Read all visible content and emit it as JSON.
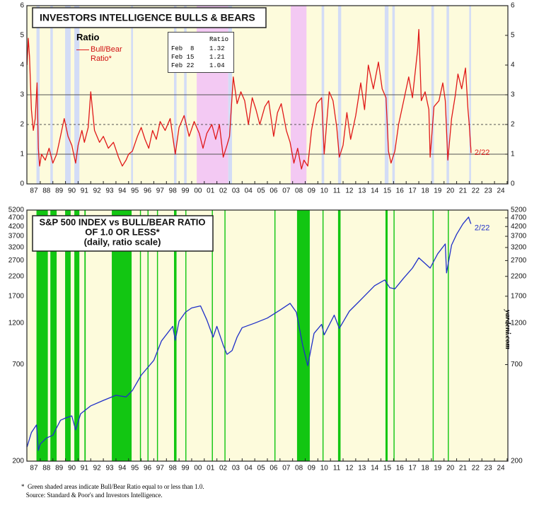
{
  "chart_data": [
    {
      "type": "line",
      "title": "INVESTORS INTELLIGENCE BULLS & BEARS",
      "legend_title": "Ratio",
      "end_label": "2/22",
      "table": {
        "header": "Ratio",
        "rows": [
          [
            "Feb  8",
            1.32
          ],
          [
            "Feb 15",
            1.21
          ],
          [
            "Feb 22",
            1.04
          ]
        ]
      },
      "background": "#fdfbdc",
      "xlim": [
        1986.94,
        2025.06
      ],
      "ylim": [
        0,
        6
      ],
      "yticks": [
        0,
        1,
        2,
        3,
        4,
        5,
        6
      ],
      "reference_lines": [
        {
          "value": 1,
          "dash": false
        },
        {
          "value": 2,
          "dash": true
        },
        {
          "value": 3,
          "dash": false
        }
      ],
      "bands": [
        {
          "color": "#f3c9f3",
          "periods": [
            [
              2000.4,
              2002.9
            ],
            [
              2007.85,
              2009.1
            ]
          ]
        },
        {
          "color": "#d3dcf6",
          "periods": [
            [
              1987.7,
              1987.95
            ],
            [
              1988.8,
              1989.0
            ],
            [
              1989.97,
              1990.41
            ],
            [
              1990.7,
              1991.1
            ],
            [
              1995.2,
              1995.35
            ],
            [
              1998.6,
              1998.8
            ],
            [
              1999.4,
              1999.6
            ],
            [
              2002.9,
              2003.2
            ],
            [
              2010.3,
              2010.5
            ],
            [
              2011.6,
              2011.85
            ],
            [
              2015.3,
              2015.6
            ],
            [
              2015.9,
              2016.1
            ],
            [
              2019.0,
              2019.2
            ],
            [
              2020.2,
              2020.4
            ],
            [
              2022.0,
              2022.14
            ]
          ]
        }
      ],
      "xticks": [
        {
          "value": 1987.5,
          "label": "87"
        },
        {
          "value": 1988.5,
          "label": "88"
        },
        {
          "value": 1989.5,
          "label": "89"
        },
        {
          "value": 1990.5,
          "label": "90"
        },
        {
          "value": 1991.5,
          "label": "91"
        },
        {
          "value": 1992.5,
          "label": "92"
        },
        {
          "value": 1993.5,
          "label": "93"
        },
        {
          "value": 1994.5,
          "label": "94"
        },
        {
          "value": 1995.5,
          "label": "95"
        },
        {
          "value": 1996.5,
          "label": "96"
        },
        {
          "value": 1997.5,
          "label": "97"
        },
        {
          "value": 1998.5,
          "label": "98"
        },
        {
          "value": 1999.5,
          "label": "99"
        },
        {
          "value": 2000.5,
          "label": "00"
        },
        {
          "value": 2001.5,
          "label": "01"
        },
        {
          "value": 2002.5,
          "label": "02"
        },
        {
          "value": 2003.5,
          "label": "03"
        },
        {
          "value": 2004.5,
          "label": "04"
        },
        {
          "value": 2005.5,
          "label": "05"
        },
        {
          "value": 2006.5,
          "label": "06"
        },
        {
          "value": 2007.5,
          "label": "07"
        },
        {
          "value": 2008.5,
          "label": "08"
        },
        {
          "value": 2009.5,
          "label": "09"
        },
        {
          "value": 2010.5,
          "label": "10"
        },
        {
          "value": 2011.5,
          "label": "11"
        },
        {
          "value": 2012.5,
          "label": "12"
        },
        {
          "value": 2013.5,
          "label": "13"
        },
        {
          "value": 2014.5,
          "label": "14"
        },
        {
          "value": 2015.5,
          "label": "15"
        },
        {
          "value": 2016.5,
          "label": "16"
        },
        {
          "value": 2017.5,
          "label": "17"
        },
        {
          "value": 2018.5,
          "label": "18"
        },
        {
          "value": 2019.5,
          "label": "19"
        },
        {
          "value": 2020.5,
          "label": "20"
        },
        {
          "value": 2021.5,
          "label": "21"
        },
        {
          "value": 2022.5,
          "label": "22"
        },
        {
          "value": 2023.5,
          "label": "23"
        },
        {
          "value": 2024.5,
          "label": "24"
        }
      ],
      "series": [
        {
          "name": "Bull/Bear Ratio*",
          "color": "#e01818",
          "x": [
            1986.95,
            1987.05,
            1987.15,
            1987.3,
            1987.45,
            1987.6,
            1987.75,
            1987.85,
            1987.95,
            1988.1,
            1988.4,
            1988.7,
            1989.0,
            1989.3,
            1989.6,
            1989.9,
            1990.2,
            1990.5,
            1990.8,
            1991.0,
            1991.3,
            1991.5,
            1991.8,
            1992.0,
            1992.3,
            1992.7,
            1993.0,
            1993.4,
            1993.8,
            1994.2,
            1994.5,
            1994.8,
            1995.0,
            1995.3,
            1995.7,
            1996.0,
            1996.3,
            1996.6,
            1996.9,
            1997.2,
            1997.5,
            1997.9,
            1998.3,
            1998.7,
            1999.0,
            1999.4,
            1999.8,
            2000.2,
            2000.6,
            2000.9,
            2001.2,
            2001.6,
            2001.9,
            2002.2,
            2002.5,
            2002.8,
            2003.0,
            2003.3,
            2003.6,
            2003.9,
            2004.2,
            2004.5,
            2004.8,
            2005.1,
            2005.4,
            2005.8,
            2006.1,
            2006.5,
            2006.8,
            2007.1,
            2007.5,
            2007.8,
            2008.1,
            2008.4,
            2008.7,
            2008.9,
            2009.2,
            2009.5,
            2009.9,
            2010.3,
            2010.5,
            2010.9,
            2011.2,
            2011.5,
            2011.7,
            2012.0,
            2012.3,
            2012.6,
            2013.0,
            2013.4,
            2013.7,
            2014.0,
            2014.4,
            2014.8,
            2015.1,
            2015.4,
            2015.6,
            2015.8,
            2016.1,
            2016.4,
            2016.8,
            2017.2,
            2017.5,
            2017.9,
            2018.0,
            2018.2,
            2018.5,
            2018.8,
            2018.9,
            2019.2,
            2019.6,
            2019.9,
            2020.1,
            2020.3,
            2020.6,
            2020.9,
            2021.1,
            2021.4,
            2021.7,
            2021.9,
            2022.0,
            2022.1,
            2022.12,
            2022.14
          ],
          "values": [
            4.0,
            4.9,
            4.3,
            2.5,
            1.8,
            2.2,
            3.4,
            1.2,
            0.6,
            1.0,
            0.8,
            1.2,
            0.7,
            1.0,
            1.6,
            2.2,
            1.6,
            1.3,
            0.7,
            1.3,
            1.8,
            1.4,
            1.9,
            3.1,
            1.8,
            1.4,
            1.6,
            1.2,
            1.4,
            0.9,
            0.6,
            0.8,
            1.0,
            1.1,
            1.6,
            1.9,
            1.5,
            1.2,
            1.8,
            1.5,
            2.1,
            1.8,
            2.2,
            1.0,
            1.9,
            2.3,
            1.6,
            2.1,
            1.7,
            1.2,
            1.7,
            2.0,
            1.5,
            2.0,
            0.9,
            1.3,
            1.6,
            3.6,
            2.7,
            3.1,
            2.8,
            2.0,
            2.9,
            2.5,
            2.0,
            2.6,
            2.8,
            1.6,
            2.4,
            2.7,
            1.8,
            1.4,
            0.7,
            1.2,
            0.5,
            0.8,
            0.6,
            1.8,
            2.7,
            2.9,
            1.0,
            3.1,
            2.8,
            1.9,
            0.9,
            1.3,
            2.4,
            1.5,
            2.3,
            3.4,
            2.5,
            4.0,
            3.2,
            4.1,
            3.2,
            2.9,
            1.1,
            0.7,
            1.1,
            2.0,
            2.8,
            3.6,
            2.9,
            4.5,
            5.2,
            2.8,
            3.1,
            2.5,
            0.9,
            2.6,
            2.8,
            3.4,
            2.8,
            0.8,
            2.2,
            3.0,
            3.7,
            3.2,
            3.9,
            2.5,
            2.0,
            1.32,
            1.21,
            1.04
          ]
        }
      ]
    },
    {
      "type": "line",
      "title_lines": [
        "S&P 500 INDEX vs BULL/BEAR RATIO",
        "OF 1.0 OR LESS*",
        "(daily, ratio scale)"
      ],
      "end_label": "2/22",
      "watermark": "yardeni.com",
      "footnotes": [
        "*  Green shaded areas indicate Bull/Bear Ratio equal to or less than 1.0.",
        "   Source: Standard & Poor's and Investors Intelligence."
      ],
      "background": "#fdfbdc",
      "log_y": true,
      "xlim": [
        1986.94,
        2025.06
      ],
      "ylim": [
        200,
        5200
      ],
      "yticks": [
        200,
        700,
        1200,
        1700,
        2200,
        2700,
        3200,
        3700,
        4200,
        4700,
        5200
      ],
      "bands": [
        {
          "color": "#12c612",
          "periods": [
            [
              1987.7,
              1988.6
            ],
            [
              1988.8,
              1989.3
            ],
            [
              1989.97,
              1990.41
            ],
            [
              1990.7,
              1991.1
            ],
            [
              1991.5,
              1991.6
            ],
            [
              1993.67,
              1995.24
            ],
            [
              1995.9,
              1995.98
            ],
            [
              1996.5,
              1996.58
            ],
            [
              1997.25,
              1997.33
            ],
            [
              1998.6,
              1998.8
            ],
            [
              1999.5,
              1999.58
            ],
            [
              2001.6,
              2001.68
            ],
            [
              2002.6,
              2002.68
            ],
            [
              2006.56,
              2006.64
            ],
            [
              2008.35,
              2009.36
            ],
            [
              2010.37,
              2010.45
            ],
            [
              2011.6,
              2011.8
            ],
            [
              2015.36,
              2015.53
            ],
            [
              2016.0,
              2016.08
            ],
            [
              2019.1,
              2019.18
            ],
            [
              2020.3,
              2020.38
            ]
          ]
        }
      ],
      "xticks": [
        {
          "value": 1987.5,
          "label": "87"
        },
        {
          "value": 1988.5,
          "label": "88"
        },
        {
          "value": 1989.5,
          "label": "89"
        },
        {
          "value": 1990.5,
          "label": "90"
        },
        {
          "value": 1991.5,
          "label": "91"
        },
        {
          "value": 1992.5,
          "label": "92"
        },
        {
          "value": 1993.5,
          "label": "93"
        },
        {
          "value": 1994.5,
          "label": "94"
        },
        {
          "value": 1995.5,
          "label": "95"
        },
        {
          "value": 1996.5,
          "label": "96"
        },
        {
          "value": 1997.5,
          "label": "97"
        },
        {
          "value": 1998.5,
          "label": "98"
        },
        {
          "value": 1999.5,
          "label": "99"
        },
        {
          "value": 2000.5,
          "label": "00"
        },
        {
          "value": 2001.5,
          "label": "01"
        },
        {
          "value": 2002.5,
          "label": "02"
        },
        {
          "value": 2003.5,
          "label": "03"
        },
        {
          "value": 2004.5,
          "label": "04"
        },
        {
          "value": 2005.5,
          "label": "05"
        },
        {
          "value": 2006.5,
          "label": "06"
        },
        {
          "value": 2007.5,
          "label": "07"
        },
        {
          "value": 2008.5,
          "label": "08"
        },
        {
          "value": 2009.5,
          "label": "09"
        },
        {
          "value": 2010.5,
          "label": "10"
        },
        {
          "value": 2011.5,
          "label": "11"
        },
        {
          "value": 2012.5,
          "label": "12"
        },
        {
          "value": 2013.5,
          "label": "13"
        },
        {
          "value": 2014.5,
          "label": "14"
        },
        {
          "value": 2015.5,
          "label": "15"
        },
        {
          "value": 2016.5,
          "label": "16"
        },
        {
          "value": 2017.5,
          "label": "17"
        },
        {
          "value": 2018.5,
          "label": "18"
        },
        {
          "value": 2019.5,
          "label": "19"
        },
        {
          "value": 2020.5,
          "label": "20"
        },
        {
          "value": 2021.5,
          "label": "21"
        },
        {
          "value": 2022.5,
          "label": "22"
        },
        {
          "value": 2023.5,
          "label": "23"
        },
        {
          "value": 2024.5,
          "label": "24"
        }
      ],
      "series": [
        {
          "name": "S&P 500",
          "color": "#1f2fc8",
          "x": [
            1986.95,
            1987.3,
            1987.7,
            1987.85,
            1988.0,
            1988.5,
            1989.0,
            1989.6,
            1990.0,
            1990.5,
            1990.8,
            1991.2,
            1992.0,
            1993.0,
            1994.0,
            1994.8,
            1995.3,
            1996.0,
            1997.0,
            1997.6,
            1998.5,
            1998.7,
            1999.0,
            1999.5,
            2000.0,
            2000.7,
            2001.2,
            2001.7,
            2002.0,
            2002.5,
            2002.8,
            2003.2,
            2003.6,
            2004.0,
            2005.0,
            2006.0,
            2007.0,
            2007.8,
            2008.3,
            2008.8,
            2009.2,
            2009.7,
            2010.3,
            2010.5,
            2011.3,
            2011.7,
            2012.5,
            2013.5,
            2014.5,
            2015.3,
            2015.7,
            2016.1,
            2016.8,
            2017.5,
            2018.0,
            2018.9,
            2019.5,
            2020.1,
            2020.2,
            2020.6,
            2021.0,
            2021.5,
            2021.95,
            2022.1,
            2022.14
          ],
          "values": [
            240,
            290,
            320,
            230,
            250,
            270,
            280,
            340,
            350,
            360,
            300,
            370,
            410,
            440,
            470,
            460,
            500,
            610,
            740,
            950,
            1150,
            960,
            1230,
            1380,
            1460,
            1500,
            1250,
            1000,
            1150,
            900,
            800,
            840,
            1000,
            1130,
            1200,
            1280,
            1420,
            1550,
            1380,
            900,
            690,
            1050,
            1180,
            1030,
            1330,
            1120,
            1400,
            1650,
            1950,
            2100,
            1900,
            1870,
            2150,
            2450,
            2800,
            2450,
            2950,
            3350,
            2300,
            3300,
            3800,
            4350,
            4750,
            4400,
            4350
          ]
        }
      ]
    }
  ]
}
